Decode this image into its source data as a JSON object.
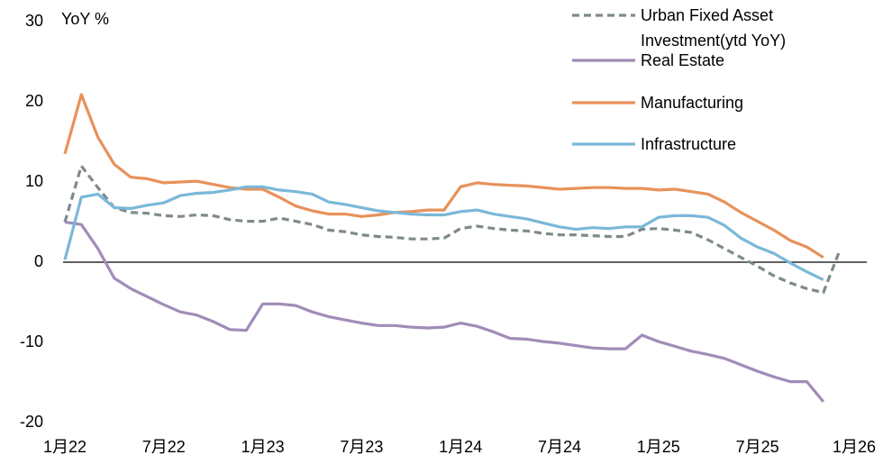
{
  "chart_data": {
    "type": "line",
    "y_label": "YoY %",
    "categories": [
      "1月22",
      null,
      null,
      null,
      null,
      null,
      "7月22",
      null,
      null,
      null,
      null,
      null,
      "1月23",
      null,
      null,
      null,
      null,
      null,
      "7月23",
      null,
      null,
      null,
      null,
      null,
      "1月24",
      null,
      null,
      null,
      null,
      null,
      "7月24",
      null,
      null,
      null,
      null,
      null,
      "1月25",
      null,
      null,
      null,
      null,
      null,
      "7月25",
      null,
      null,
      null,
      null,
      null,
      "1月26"
    ],
    "series": [
      {
        "name": "Urban Fixed Asset Investment(ytd YoY)",
        "color": "#7f8a8c",
        "dashed": true,
        "values": [
          5.0,
          12.0,
          9.3,
          6.8,
          6.2,
          6.1,
          5.8,
          5.7,
          5.9,
          5.8,
          5.3,
          5.1,
          5.1,
          5.5,
          5.1,
          4.7,
          4.0,
          3.8,
          3.4,
          3.2,
          3.1,
          2.9,
          2.9,
          3.0,
          4.2,
          4.5,
          4.2,
          4.0,
          3.9,
          3.6,
          3.4,
          3.4,
          3.3,
          3.2,
          3.2,
          4.1,
          4.2,
          4.0,
          3.7,
          2.8,
          1.7,
          0.6,
          -0.5,
          -1.7,
          -2.6,
          -3.3,
          -3.8,
          1.5,
          null
        ]
      },
      {
        "name": "Real Estate",
        "color": "#a08cb8",
        "dashed": false,
        "values": [
          5.0,
          4.7,
          1.7,
          -2.0,
          -3.3,
          -4.3,
          -5.3,
          -6.2,
          -6.6,
          -7.4,
          -8.4,
          -8.5,
          -5.2,
          -5.2,
          -5.4,
          -6.2,
          -6.8,
          -7.2,
          -7.6,
          -7.9,
          -7.9,
          -8.1,
          -8.2,
          -8.1,
          -7.6,
          -8.0,
          -8.7,
          -9.5,
          -9.6,
          -9.9,
          -10.1,
          -10.4,
          -10.7,
          -10.8,
          -10.8,
          -9.1,
          -9.9,
          -10.5,
          -11.1,
          -11.5,
          -12.0,
          -12.8,
          -13.6,
          -14.3,
          -14.9,
          -14.9,
          -17.4,
          null,
          null
        ]
      },
      {
        "name": "Manufacturing",
        "color": "#e8915a",
        "dashed": false,
        "values": [
          13.5,
          20.9,
          15.6,
          12.2,
          10.6,
          10.4,
          9.9,
          10.0,
          10.1,
          9.7,
          9.3,
          9.1,
          9.1,
          8.1,
          7.0,
          6.4,
          6.0,
          6.0,
          5.7,
          5.9,
          6.2,
          6.3,
          6.5,
          6.5,
          9.4,
          9.9,
          9.7,
          9.6,
          9.5,
          9.3,
          9.1,
          9.2,
          9.3,
          9.3,
          9.2,
          9.2,
          9.0,
          9.1,
          8.8,
          8.5,
          7.5,
          6.2,
          5.1,
          4.0,
          2.7,
          1.9,
          0.6,
          null,
          null
        ]
      },
      {
        "name": "Infrastructure",
        "color": "#7ab8d8",
        "dashed": false,
        "values": [
          0.3,
          8.1,
          8.5,
          6.8,
          6.7,
          7.1,
          7.4,
          8.3,
          8.6,
          8.7,
          9.0,
          9.4,
          9.4,
          9.0,
          8.8,
          8.5,
          7.5,
          7.2,
          6.8,
          6.4,
          6.2,
          6.0,
          5.9,
          5.9,
          6.3,
          6.5,
          6.0,
          5.7,
          5.4,
          4.9,
          4.4,
          4.1,
          4.3,
          4.2,
          4.4,
          4.4,
          5.6,
          5.8,
          5.8,
          5.6,
          4.6,
          3.0,
          1.9,
          1.1,
          -0.1,
          -1.2,
          -2.2,
          null,
          null
        ]
      }
    ],
    "ylim": [
      -20,
      30
    ],
    "yticks": [
      -20,
      -10,
      0,
      10,
      20,
      30
    ],
    "grid": false,
    "legend": "upper right"
  }
}
